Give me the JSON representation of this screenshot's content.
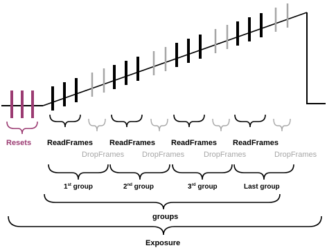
{
  "colors": {
    "read": "#000000",
    "drop": "#a6a6a6",
    "reset": "#9b3b72",
    "line": "#000000"
  },
  "labels": {
    "resets": "Resets",
    "read_frames": "ReadFrames",
    "drop_frames": "DropFrames",
    "group1": "1",
    "group1_sup": "st",
    "group2": "2",
    "group2_sup": "nd",
    "group3": "3",
    "group3_sup": "rd",
    "group_suffix": " group",
    "last_group": "Last group",
    "groups": "groups",
    "exposure": "Exposure"
  }
}
